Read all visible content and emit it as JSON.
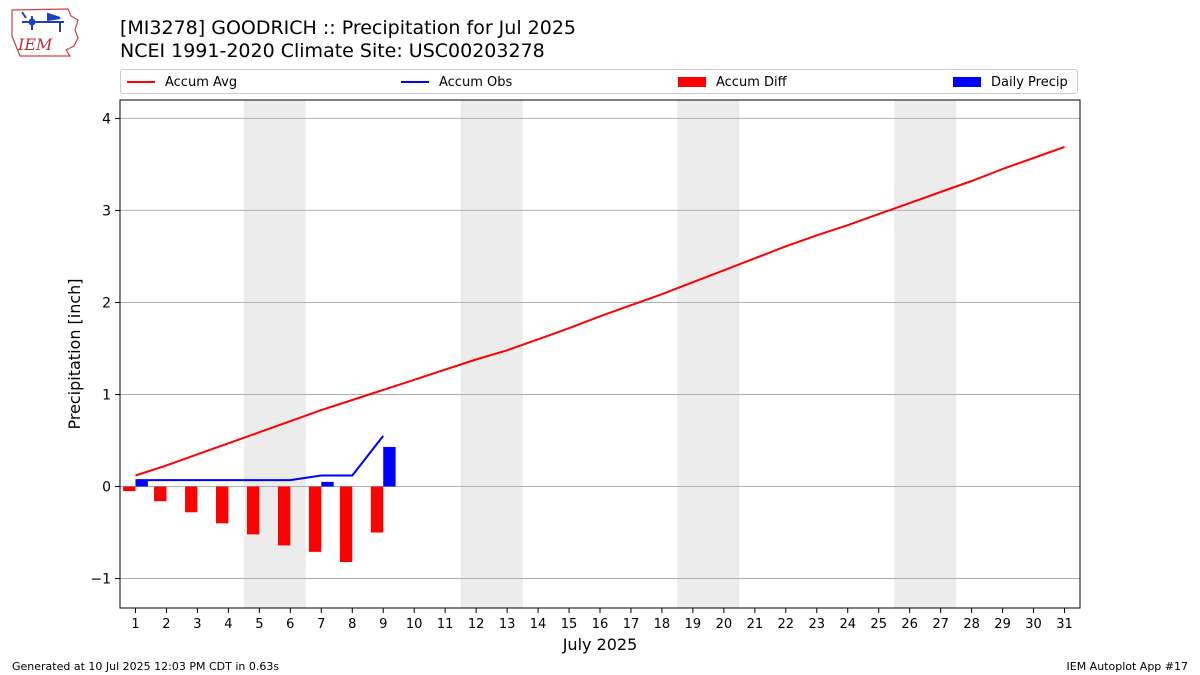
{
  "header": {
    "title_line1": "[MI3278] GOODRICH :: Precipitation for Jul 2025",
    "title_line2": "NCEI 1991-2020 Climate Site: USC00203278"
  },
  "logo": {
    "text": "IEM",
    "icon": "iem-iowa-logo-icon"
  },
  "footer": {
    "left": "Generated at 10 Jul 2025 12:03 PM CDT in 0.63s",
    "right": "IEM Autoplot App #17"
  },
  "colors": {
    "avg": "#ff0000",
    "obs": "#0000ff",
    "diff": "#ff0000",
    "daily": "#0000ff",
    "weekend": "#ececec",
    "grid": "#b0b0b0"
  },
  "chart_data": {
    "type": "bar",
    "xlabel": "July 2025",
    "ylabel": "Precipitation [inch]",
    "xlim": [
      0.5,
      31.5
    ],
    "ylim": [
      -1.32,
      4.2
    ],
    "yticks": [
      -1,
      0,
      1,
      2,
      3,
      4
    ],
    "ytick_labels": [
      "−1",
      "0",
      "1",
      "2",
      "3",
      "4"
    ],
    "days": [
      1,
      2,
      3,
      4,
      5,
      6,
      7,
      8,
      9,
      10,
      11,
      12,
      13,
      14,
      15,
      16,
      17,
      18,
      19,
      20,
      21,
      22,
      23,
      24,
      25,
      26,
      27,
      28,
      29,
      30,
      31
    ],
    "weekend_bands": [
      [
        4.5,
        6.5
      ],
      [
        11.5,
        13.5
      ],
      [
        18.5,
        20.5
      ],
      [
        25.5,
        27.5
      ]
    ],
    "grid": "horizontal",
    "legend_position": "top",
    "legend": [
      {
        "label": "Accum Avg",
        "kind": "line",
        "color": "#ff0000"
      },
      {
        "label": "Accum Obs",
        "kind": "line",
        "color": "#0000ff"
      },
      {
        "label": "Accum Diff",
        "kind": "bar",
        "color": "#ff0000"
      },
      {
        "label": "Daily Precip",
        "kind": "bar",
        "color": "#0000ff"
      }
    ],
    "series": [
      {
        "name": "Accum Avg",
        "type": "line",
        "values": [
          0.12,
          0.23,
          0.35,
          0.47,
          0.59,
          0.71,
          0.83,
          0.94,
          1.05,
          1.16,
          1.27,
          1.38,
          1.48,
          1.6,
          1.72,
          1.85,
          1.97,
          2.09,
          2.22,
          2.35,
          2.48,
          2.61,
          2.73,
          2.84,
          2.96,
          3.08,
          3.2,
          3.32,
          3.45,
          3.57,
          3.69
        ]
      },
      {
        "name": "Accum Obs",
        "type": "line",
        "values": [
          0.07,
          0.07,
          0.07,
          0.07,
          0.07,
          0.07,
          0.12,
          0.12,
          0.55
        ]
      },
      {
        "name": "Accum Diff",
        "type": "bar",
        "values": [
          -0.05,
          -0.16,
          -0.28,
          -0.4,
          -0.52,
          -0.64,
          -0.71,
          -0.82,
          -0.5
        ]
      },
      {
        "name": "Daily Precip",
        "type": "bar",
        "values": [
          0.07,
          0,
          0,
          0,
          0,
          0,
          0.05,
          0,
          0.43
        ]
      }
    ]
  }
}
